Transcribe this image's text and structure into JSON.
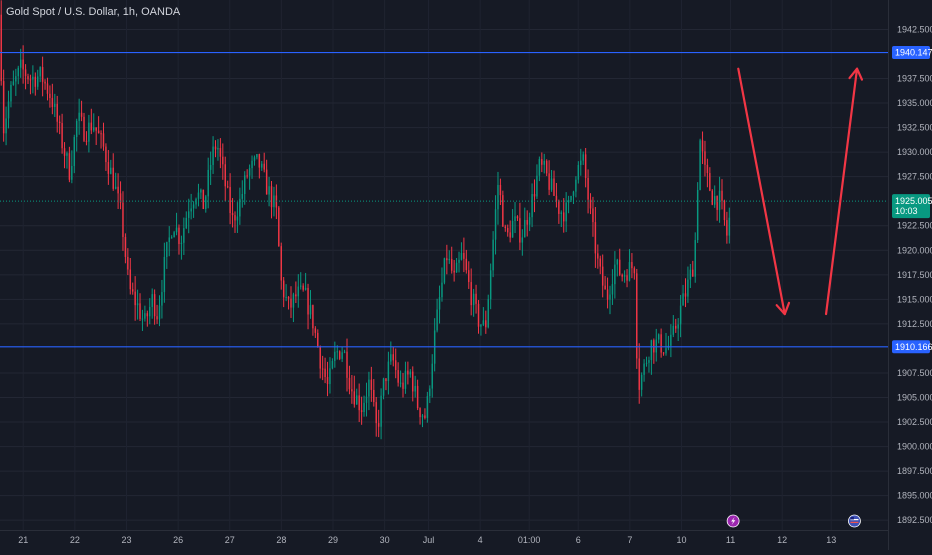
{
  "header": {
    "symbol_line": "Gold Spot / U.S. Dollar, 1h, OANDA"
  },
  "chart_data": {
    "type": "candlestick",
    "title": "Gold Spot / U.S. Dollar, 1h, OANDA",
    "ylim": [
      1891.5,
      1945.5
    ],
    "xlim": [
      0,
      17.2
    ],
    "y_ticks": [
      "1942.500",
      "1937.500",
      "1935.000",
      "1932.500",
      "1930.000",
      "1927.500",
      "1922.500",
      "1920.000",
      "1917.500",
      "1915.000",
      "1912.500",
      "1907.500",
      "1905.000",
      "1902.500",
      "1900.000",
      "1897.500",
      "1895.000",
      "1892.500"
    ],
    "x_ticks": [
      {
        "label": "21",
        "x": 0.45
      },
      {
        "label": "22",
        "x": 1.45
      },
      {
        "label": "23",
        "x": 2.45
      },
      {
        "label": "26",
        "x": 3.45
      },
      {
        "label": "27",
        "x": 4.45
      },
      {
        "label": "28",
        "x": 5.45
      },
      {
        "label": "29",
        "x": 6.45
      },
      {
        "label": "30",
        "x": 7.45
      },
      {
        "label": "Jul",
        "x": 8.3
      },
      {
        "label": "4",
        "x": 9.3
      },
      {
        "label": "01:00",
        "x": 10.25
      },
      {
        "label": "6",
        "x": 11.2
      },
      {
        "label": "7",
        "x": 12.2
      },
      {
        "label": "10",
        "x": 13.2
      },
      {
        "label": "11",
        "x": 14.15
      },
      {
        "label": "12",
        "x": 15.15
      },
      {
        "label": "13",
        "x": 16.1
      }
    ],
    "horizontal_levels": [
      {
        "price": 1940.147,
        "label": "1940.147",
        "color": "#2962ff"
      },
      {
        "price": 1910.166,
        "label": "1910.166",
        "color": "#2962ff"
      }
    ],
    "current_price": {
      "price": 1925.005,
      "label": "1925.005",
      "countdown": "10:03",
      "color": "#089981"
    },
    "series_path": [
      [
        0.0,
        1944.0
      ],
      [
        0.05,
        1932.0
      ],
      [
        0.2,
        1936.0
      ],
      [
        0.4,
        1938.5
      ],
      [
        0.6,
        1937.5
      ],
      [
        0.8,
        1937.8
      ],
      [
        1.0,
        1935.5
      ],
      [
        1.2,
        1931.0
      ],
      [
        1.35,
        1928.0
      ],
      [
        1.5,
        1933.5
      ],
      [
        1.65,
        1932.0
      ],
      [
        1.8,
        1933.0
      ],
      [
        2.0,
        1930.5
      ],
      [
        2.2,
        1927.0
      ],
      [
        2.35,
        1923.5
      ],
      [
        2.5,
        1916.0
      ],
      [
        2.65,
        1914.5
      ],
      [
        2.8,
        1912.5
      ],
      [
        2.95,
        1915.0
      ],
      [
        3.05,
        1913.5
      ],
      [
        3.2,
        1919.0
      ],
      [
        3.35,
        1923.0
      ],
      [
        3.5,
        1921.0
      ],
      [
        3.65,
        1924.5
      ],
      [
        3.8,
        1926.0
      ],
      [
        3.95,
        1924.5
      ],
      [
        4.1,
        1929.5
      ],
      [
        4.2,
        1931.0
      ],
      [
        4.35,
        1927.0
      ],
      [
        4.5,
        1923.0
      ],
      [
        4.65,
        1925.0
      ],
      [
        4.8,
        1928.0
      ],
      [
        5.0,
        1929.0
      ],
      [
        5.2,
        1926.0
      ],
      [
        5.35,
        1924.0
      ],
      [
        5.45,
        1916.5
      ],
      [
        5.6,
        1914.0
      ],
      [
        5.75,
        1915.5
      ],
      [
        5.9,
        1915.5
      ],
      [
        6.05,
        1913.0
      ],
      [
        6.2,
        1909.0
      ],
      [
        6.35,
        1906.0
      ],
      [
        6.5,
        1909.5
      ],
      [
        6.65,
        1910.0
      ],
      [
        6.8,
        1906.0
      ],
      [
        7.0,
        1904.0
      ],
      [
        7.15,
        1906.5
      ],
      [
        7.3,
        1901.5
      ],
      [
        7.45,
        1907.0
      ],
      [
        7.6,
        1909.0
      ],
      [
        7.75,
        1906.0
      ],
      [
        7.95,
        1907.5
      ],
      [
        8.1,
        1904.0
      ],
      [
        8.25,
        1903.0
      ],
      [
        8.4,
        1910.5
      ],
      [
        8.5,
        1914.5
      ],
      [
        8.65,
        1919.5
      ],
      [
        8.8,
        1917.0
      ],
      [
        8.95,
        1919.5
      ],
      [
        9.1,
        1916.0
      ],
      [
        9.25,
        1913.0
      ],
      [
        9.4,
        1912.0
      ],
      [
        9.55,
        1921.0
      ],
      [
        9.65,
        1927.0
      ],
      [
        9.8,
        1921.0
      ],
      [
        9.95,
        1923.0
      ],
      [
        10.1,
        1921.5
      ],
      [
        10.3,
        1925.0
      ],
      [
        10.45,
        1928.5
      ],
      [
        10.55,
        1928.0
      ],
      [
        10.7,
        1926.0
      ],
      [
        10.85,
        1924.0
      ],
      [
        11.0,
        1924.0
      ],
      [
        11.15,
        1928.0
      ],
      [
        11.3,
        1929.0
      ],
      [
        11.45,
        1923.0
      ],
      [
        11.6,
        1918.0
      ],
      [
        11.75,
        1915.0
      ],
      [
        11.9,
        1918.5
      ],
      [
        12.05,
        1917.5
      ],
      [
        12.15,
        1918.0
      ],
      [
        12.3,
        1918.5
      ],
      [
        12.35,
        1906.0
      ],
      [
        12.45,
        1907.5
      ],
      [
        12.6,
        1910.5
      ],
      [
        12.75,
        1910.5
      ],
      [
        12.9,
        1910.0
      ],
      [
        13.0,
        1910.5
      ],
      [
        13.15,
        1913.5
      ],
      [
        13.3,
        1916.0
      ],
      [
        13.45,
        1919.0
      ],
      [
        13.55,
        1931.5
      ],
      [
        13.65,
        1928.0
      ],
      [
        13.8,
        1925.5
      ],
      [
        13.95,
        1925.0
      ],
      [
        14.1,
        1921.0
      ],
      [
        14.15,
        1925.0
      ]
    ],
    "annotations": [
      {
        "type": "arrow",
        "direction": "down",
        "color": "#f23645",
        "from": [
          14.3,
          1938.5
        ],
        "to": [
          15.2,
          1913.5
        ]
      },
      {
        "type": "arrow",
        "direction": "up",
        "color": "#f23645",
        "from": [
          16.0,
          1913.5
        ],
        "to": [
          16.6,
          1938.5
        ]
      }
    ],
    "bottom_markers": [
      {
        "name": "economic-event-icon",
        "x": 14.2,
        "color": "#9c27b0"
      },
      {
        "name": "us-flag-icon",
        "x": 16.55,
        "color": "#3f51b5"
      }
    ]
  }
}
